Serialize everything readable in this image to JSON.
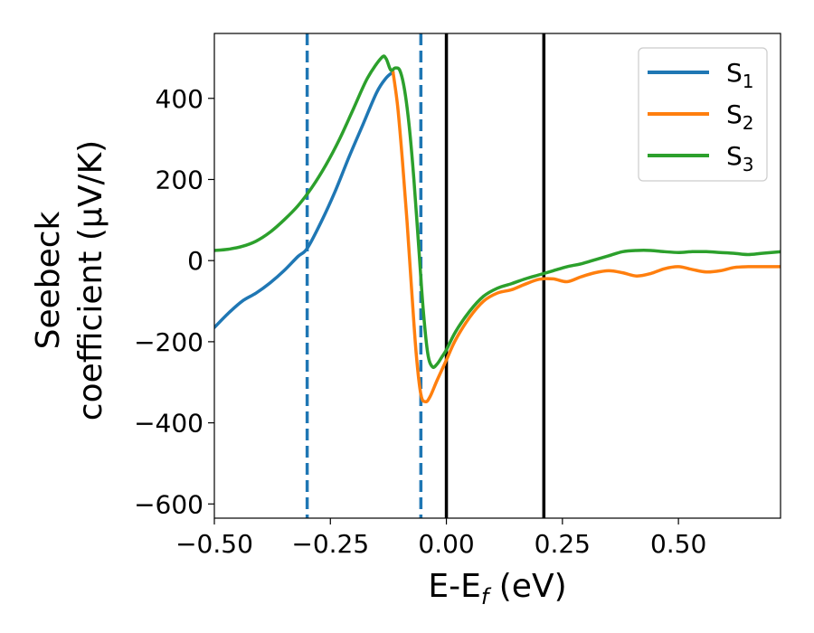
{
  "chart_data": {
    "type": "line",
    "xlabel": "E-E",
    "xlabel_sub": "f",
    "xlabel_unit": " (eV)",
    "ylabel_line1": "Seebeck",
    "ylabel_line2": "coefficient  (μV/K)",
    "xlim": [
      -0.5,
      0.72
    ],
    "ylim": [
      -635,
      560
    ],
    "xticks": [
      {
        "value": -0.5,
        "label": "−0.50"
      },
      {
        "value": -0.25,
        "label": "−0.25"
      },
      {
        "value": 0.0,
        "label": "0.00"
      },
      {
        "value": 0.25,
        "label": "0.25"
      },
      {
        "value": 0.5,
        "label": "0.50"
      }
    ],
    "yticks": [
      {
        "value": 400,
        "label": "400"
      },
      {
        "value": 200,
        "label": "200"
      },
      {
        "value": 0,
        "label": "0"
      },
      {
        "value": -200,
        "label": "−200"
      },
      {
        "value": -400,
        "label": "−400"
      },
      {
        "value": -600,
        "label": "−600"
      }
    ],
    "grid": false,
    "legend_position": "top-right",
    "series": [
      {
        "name": "S",
        "subscript": "1",
        "color": "#1f77b4",
        "x": [
          -0.5,
          -0.47,
          -0.44,
          -0.41,
          -0.38,
          -0.35,
          -0.32,
          -0.3,
          -0.27,
          -0.24,
          -0.21,
          -0.18,
          -0.15,
          -0.13,
          -0.115
        ],
        "y": [
          -165,
          -130,
          -100,
          -80,
          -55,
          -25,
          10,
          30,
          95,
          170,
          255,
          335,
          415,
          450,
          465
        ]
      },
      {
        "name": "S",
        "subscript": "2",
        "color": "#ff7f0e",
        "x": [
          -0.115,
          -0.105,
          -0.095,
          -0.085,
          -0.075,
          -0.065,
          -0.055,
          -0.045,
          -0.035,
          -0.02,
          0.0,
          0.02,
          0.05,
          0.08,
          0.11,
          0.14,
          0.17,
          0.2,
          0.23,
          0.26,
          0.29,
          0.32,
          0.35,
          0.38,
          0.41,
          0.44,
          0.47,
          0.5,
          0.53,
          0.56,
          0.59,
          0.62,
          0.65,
          0.68,
          0.72
        ],
        "y": [
          465,
          380,
          250,
          100,
          -70,
          -230,
          -330,
          -348,
          -335,
          -295,
          -245,
          -195,
          -140,
          -100,
          -80,
          -72,
          -58,
          -46,
          -45,
          -52,
          -40,
          -30,
          -25,
          -30,
          -38,
          -32,
          -20,
          -15,
          -22,
          -28,
          -25,
          -17,
          -15,
          -15,
          -15
        ]
      },
      {
        "name": "S",
        "subscript": "3",
        "color": "#2ca02c",
        "x": [
          -0.5,
          -0.47,
          -0.44,
          -0.41,
          -0.38,
          -0.35,
          -0.32,
          -0.29,
          -0.26,
          -0.23,
          -0.2,
          -0.17,
          -0.14,
          -0.13,
          -0.12,
          -0.11,
          -0.1,
          -0.09,
          -0.08,
          -0.07,
          -0.06,
          -0.05,
          -0.04,
          -0.03,
          -0.02,
          -0.01,
          0.0,
          0.02,
          0.05,
          0.08,
          0.11,
          0.14,
          0.17,
          0.2,
          0.23,
          0.26,
          0.29,
          0.32,
          0.35,
          0.38,
          0.41,
          0.44,
          0.47,
          0.5,
          0.53,
          0.56,
          0.59,
          0.62,
          0.65,
          0.68,
          0.72
        ],
        "y": [
          25,
          28,
          35,
          48,
          70,
          100,
          135,
          180,
          235,
          300,
          375,
          450,
          500,
          498,
          470,
          475,
          468,
          420,
          330,
          200,
          40,
          -120,
          -230,
          -262,
          -255,
          -238,
          -220,
          -175,
          -125,
          -88,
          -68,
          -57,
          -45,
          -35,
          -25,
          -15,
          -8,
          2,
          12,
          22,
          25,
          25,
          22,
          20,
          22,
          22,
          20,
          18,
          15,
          18,
          22
        ]
      }
    ],
    "vlines": [
      {
        "x": -0.3,
        "style": "dashed",
        "color": "#1f77b4"
      },
      {
        "x": -0.055,
        "style": "dashed",
        "color": "#1f77b4"
      },
      {
        "x": 0.0,
        "style": "solid",
        "color": "#000000"
      },
      {
        "x": 0.21,
        "style": "solid",
        "color": "#000000"
      }
    ]
  }
}
